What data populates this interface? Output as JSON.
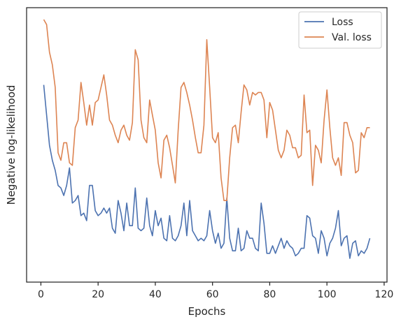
{
  "chart_data": {
    "type": "line",
    "title": "",
    "xlabel": "Epochs",
    "ylabel": "Negative log-likelihood",
    "xlim": [
      -5,
      121
    ],
    "ylim": [
      0,
      100
    ],
    "xticks": [
      0,
      20,
      40,
      60,
      80,
      100,
      120
    ],
    "y_tick_labels_shown": false,
    "grid": false,
    "legend_position": "upper right",
    "series": [
      {
        "name": "Loss",
        "color": "#4c72b0",
        "x": [
          1,
          2,
          3,
          4,
          5,
          6,
          7,
          8,
          9,
          10,
          11,
          12,
          13,
          14,
          15,
          16,
          17,
          18,
          19,
          20,
          21,
          22,
          23,
          24,
          25,
          26,
          27,
          28,
          29,
          30,
          31,
          32,
          33,
          34,
          35,
          36,
          37,
          38,
          39,
          40,
          41,
          42,
          43,
          44,
          45,
          46,
          47,
          48,
          49,
          50,
          51,
          52,
          53,
          54,
          55,
          56,
          57,
          58,
          59,
          60,
          61,
          62,
          63,
          64,
          65,
          66,
          67,
          68,
          69,
          70,
          71,
          72,
          73,
          74,
          75,
          76,
          77,
          78,
          79,
          80,
          81,
          82,
          83,
          84,
          85,
          86,
          87,
          88,
          89,
          90,
          91,
          92,
          93,
          94,
          95,
          96,
          97,
          98,
          99,
          100,
          101,
          102,
          103,
          104,
          105,
          106,
          107,
          108,
          109,
          110,
          111,
          112,
          113,
          114,
          115
        ],
        "values": [
          74,
          62,
          50,
          44,
          40,
          34,
          33,
          30,
          34,
          41,
          27,
          28,
          30,
          22,
          23,
          20,
          34,
          34,
          24,
          22,
          23,
          25,
          23,
          25,
          17,
          15,
          28,
          23,
          16,
          27,
          18,
          18,
          33,
          17,
          16,
          17,
          29,
          18,
          14,
          24,
          18,
          21,
          13,
          12,
          22,
          13,
          12,
          14,
          18,
          27,
          14,
          28,
          16,
          14,
          12,
          13,
          12,
          14,
          24,
          16,
          11,
          15,
          9,
          11,
          29,
          13,
          8,
          8,
          17,
          8,
          9,
          16,
          13,
          13,
          9,
          8,
          27,
          19,
          7,
          7,
          10,
          7,
          10,
          13,
          9,
          12,
          10,
          9,
          6,
          7,
          9,
          9,
          22,
          21,
          14,
          13,
          7,
          16,
          13,
          6,
          11,
          13,
          17,
          24,
          10,
          13,
          14,
          5,
          11,
          12,
          6,
          8,
          7,
          9,
          13
        ]
      },
      {
        "name": "Val. loss",
        "color": "#dd8452",
        "x": [
          1,
          2,
          3,
          4,
          5,
          6,
          7,
          8,
          9,
          10,
          11,
          12,
          13,
          14,
          15,
          16,
          17,
          18,
          19,
          20,
          21,
          22,
          23,
          24,
          25,
          26,
          27,
          28,
          29,
          30,
          31,
          32,
          33,
          34,
          35,
          36,
          37,
          38,
          39,
          40,
          41,
          42,
          43,
          44,
          45,
          46,
          47,
          48,
          49,
          50,
          51,
          52,
          53,
          54,
          55,
          56,
          57,
          58,
          59,
          60,
          61,
          62,
          63,
          64,
          65,
          66,
          67,
          68,
          69,
          70,
          71,
          72,
          73,
          74,
          75,
          76,
          77,
          78,
          79,
          80,
          81,
          82,
          83,
          84,
          85,
          86,
          87,
          88,
          89,
          90,
          91,
          92,
          93,
          94,
          95,
          96,
          97,
          98,
          99,
          100,
          101,
          102,
          103,
          104,
          105,
          106,
          107,
          108,
          109,
          110,
          111,
          112,
          113,
          114,
          115
        ],
        "values": [
          100,
          98,
          87,
          82,
          73,
          47,
          44,
          51,
          51,
          43,
          42,
          57,
          60,
          75,
          67,
          58,
          66,
          58,
          67,
          68,
          73,
          78,
          70,
          60,
          58,
          54,
          51,
          56,
          58,
          54,
          52,
          59,
          88,
          84,
          60,
          53,
          51,
          68,
          62,
          56,
          43,
          37,
          52,
          54,
          49,
          42,
          35,
          56,
          73,
          75,
          71,
          66,
          60,
          53,
          47,
          47,
          58,
          92,
          73,
          53,
          51,
          55,
          37,
          28,
          28,
          45,
          57,
          58,
          51,
          63,
          74,
          72,
          66,
          71,
          70,
          71,
          71,
          68,
          53,
          67,
          64,
          56,
          48,
          45,
          48,
          56,
          54,
          49,
          49,
          45,
          46,
          70,
          55,
          56,
          34,
          50,
          48,
          43,
          60,
          72,
          57,
          45,
          42,
          45,
          38,
          59,
          59,
          54,
          51,
          39,
          40,
          55,
          53,
          57,
          57
        ]
      }
    ]
  }
}
